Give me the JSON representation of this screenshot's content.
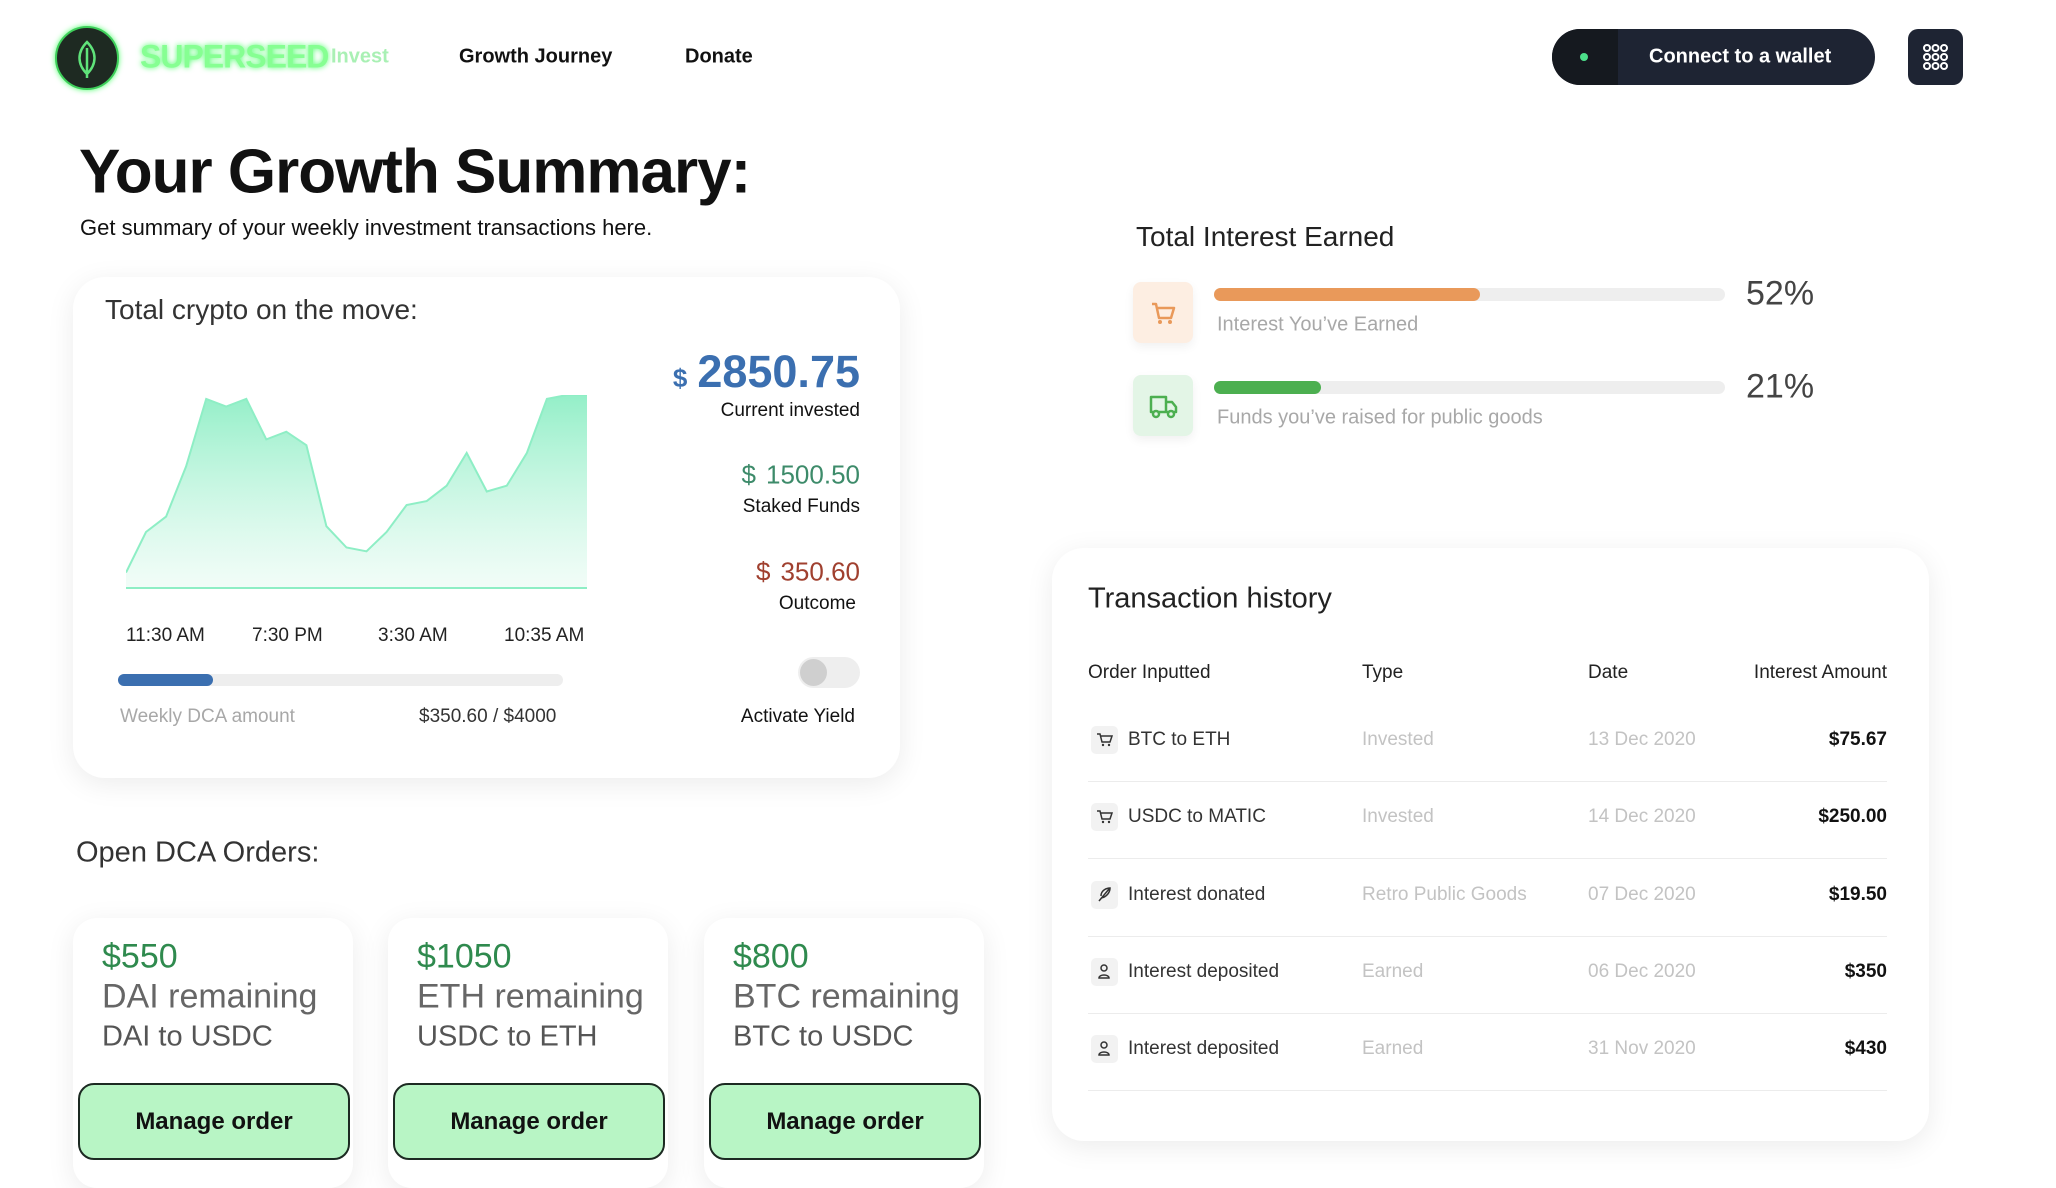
{
  "nav": {
    "brand": "SUPERSEED",
    "links": [
      "Invest",
      "Growth Journey",
      "Donate"
    ],
    "connect": "Connect to a wallet"
  },
  "header": {
    "title": "Your Growth Summary:",
    "subtitle": "Get summary of your weekly investment transactions here."
  },
  "crypto_card": {
    "title": "Total crypto on the move:",
    "chart": {
      "type": "area",
      "categories": [
        "11:30 AM",
        "7:30 PM",
        "3:30 AM",
        "10:35 AM"
      ],
      "values": [
        8,
        29,
        37,
        63,
        98,
        94,
        98,
        77,
        81,
        74,
        32,
        21,
        19,
        29,
        43,
        45,
        53,
        70,
        50,
        53,
        70,
        98,
        100,
        100
      ],
      "ylim": [
        0,
        100
      ],
      "color": "#8eeec5"
    },
    "stats": [
      {
        "currency": "$",
        "amount": "2850.75",
        "label": "Current invested"
      },
      {
        "currency": "$",
        "amount": "1500.50",
        "label": "Staked Funds"
      },
      {
        "currency": "$",
        "amount": "350.60",
        "label": "Outcome"
      }
    ],
    "dca_label": "Weekly DCA amount",
    "dca_progress": "$350.60 / $4000",
    "toggle_label": "Activate Yield"
  },
  "orders": {
    "title": "Open DCA Orders:",
    "items": [
      {
        "amount": "$550",
        "remaining": "DAI remaining",
        "pair": "DAI to USDC",
        "button": "Manage order"
      },
      {
        "amount": "$1050",
        "remaining": "ETH remaining",
        "pair": "USDC to ETH",
        "button": "Manage order"
      },
      {
        "amount": "$800",
        "remaining": "BTC remaining",
        "pair": "BTC to USDC",
        "button": "Manage order"
      }
    ]
  },
  "interest": {
    "title": "Total Interest Earned",
    "items": [
      {
        "label": "Interest You’ve Earned",
        "value": 52,
        "value_label": "52%",
        "color": "#e9995a"
      },
      {
        "label": "Funds you’ve raised for public goods",
        "value": 21,
        "value_label": "21%",
        "color": "#4caf50"
      }
    ]
  },
  "transactions": {
    "title": "Transaction history",
    "columns": [
      "Order Inputted",
      "Type",
      "Date",
      "Interest Amount"
    ],
    "rows": [
      [
        "BTC to ETH",
        "Invested",
        "13 Dec 2020",
        "$75.67"
      ],
      [
        "USDC to MATIC",
        "Invested",
        "14 Dec 2020",
        "$250.00"
      ],
      [
        "Interest donated",
        "Retro Public Goods",
        "07 Dec 2020",
        "$19.50"
      ],
      [
        "Interest deposited",
        "Earned",
        "06 Dec 2020",
        "$350"
      ],
      [
        "Interest deposited",
        "Earned",
        "31 Nov 2020",
        "$430"
      ]
    ]
  }
}
